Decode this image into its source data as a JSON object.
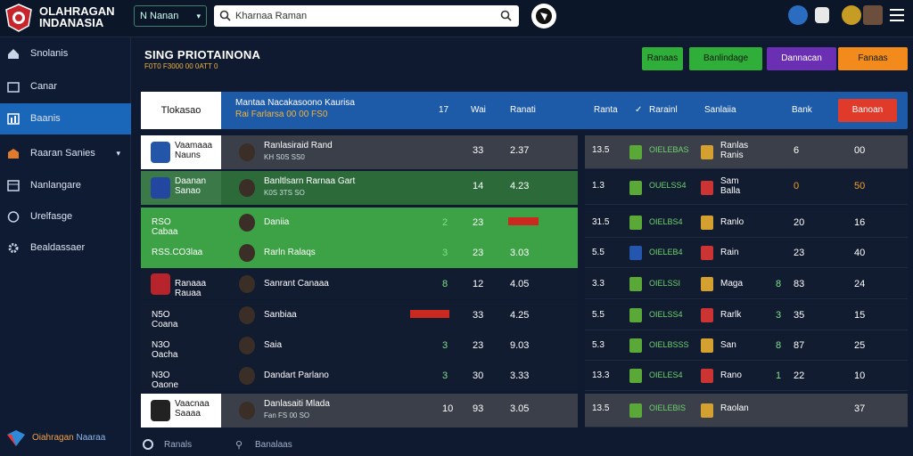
{
  "brand": {
    "line1": "OLAHRAGAN",
    "line2": "INDANASIA"
  },
  "topbar": {
    "select_label": "N Nanan",
    "search_value": "Kharnaa Raman"
  },
  "sidebar": {
    "items": [
      {
        "label": "Snolanis"
      },
      {
        "label": "Canar"
      },
      {
        "label": "Baanis"
      },
      {
        "label": "Raaran Sanies"
      },
      {
        "label": "Nanlangare"
      },
      {
        "label": "Urelfasge"
      },
      {
        "label": "Bealdassaer"
      }
    ],
    "footer": {
      "a": "Oiahragan",
      "b": "Naaraa"
    }
  },
  "main": {
    "title": "SING PRIOTAINONA",
    "subtitle": "F0T0 F3000   00 0ATT 0"
  },
  "buttons": [
    {
      "label": "Ranaas",
      "color": "#2fae3a"
    },
    {
      "label": "Banlindage",
      "color": "#2fae3a"
    },
    {
      "label": "Dannacan",
      "color": "#6a2fb3"
    },
    {
      "label": "Fanaas",
      "color": "#f28a1c"
    }
  ],
  "table_header": {
    "first": "Tlokasao",
    "title": "Mantaa Nacakasoono Kaurisa",
    "sub": "Rai Farlarsa 00 00 FS0",
    "c1": "17",
    "c2": "Wai",
    "c3": "Ranati",
    "r1": "Ranta",
    "r2": "Rarainl",
    "r3": "Sanlaiia",
    "r4": "Bank",
    "cta": "Banoan"
  },
  "left_rows": [
    {
      "team": "Vaamaaa Nauns",
      "player": "Ranlasiraid Rand",
      "player_sub": "KH S0S SS0",
      "c1": "",
      "c2": "33",
      "c3": "2.37",
      "bg": "#3a3f49"
    },
    {
      "team": "Daanan Sanao",
      "player": "Banltlsarn Rarnaa Gart",
      "player_sub": "K0S 3TS SO",
      "c1": "",
      "c2": "14",
      "c3": "4.23",
      "bg": "#2c6a3a"
    },
    {
      "team": "RSO Cabaa",
      "player": "Daniia",
      "player_sub": "",
      "c1": "2",
      "c2": "23",
      "c3": "",
      "bg": "#3da145"
    },
    {
      "team": "RSS.CO3laa",
      "player": "Rarln Ralaqs",
      "player_sub": "",
      "c1": "3",
      "c2": "23",
      "c3": "3.03",
      "bg": "#3da145"
    },
    {
      "team": "Ranaaa Rauaa",
      "player": "Sanrant Canaaa",
      "player_sub": "",
      "c1": "8",
      "c2": "12",
      "c3": "4.05",
      "bg": "#121c30"
    },
    {
      "team": "N5O Coana",
      "player": "Sanbiaa",
      "player_sub": "",
      "c1": "",
      "c2": "33",
      "c3": "4.25",
      "bg": "#121c30"
    },
    {
      "team": "N3O Oacha",
      "player": "Saia",
      "player_sub": "",
      "c1": "3",
      "c2": "23",
      "c3": "9.03",
      "bg": "#121c30"
    },
    {
      "team": "N3O Oaone",
      "player": "Dandart Parlano",
      "player_sub": "",
      "c1": "3",
      "c2": "30",
      "c3": "3.33",
      "bg": "#121c30"
    },
    {
      "team": "Vaacnaa Saaaa",
      "player": "Danlasaiti Mlada",
      "player_sub": "Fan FS 00 SO",
      "c1": "10",
      "c2": "93",
      "c3": "3.05",
      "bg": "#3a3f49"
    }
  ],
  "right_rows": [
    {
      "a": "13.5",
      "b": "OIELEBAS",
      "name": "Ranlas Ranis",
      "c": "",
      "d": "6",
      "e": "00",
      "bg": "#3a3f49"
    },
    {
      "a": "1.3",
      "b": "OUELSS4",
      "name": "Sam Balla",
      "c": "",
      "d": "0",
      "e": "50",
      "bg": "#121c30"
    },
    {
      "a": "31.5",
      "b": "OIELBS4",
      "name": "Ranlo",
      "c": "",
      "d": "20",
      "e": "16",
      "bg": "#121c30"
    },
    {
      "a": "5.5",
      "b": "OIELEB4",
      "name": "Rain",
      "c": "",
      "d": "23",
      "e": "40",
      "bg": "#121c30"
    },
    {
      "a": "3.3",
      "b": "OIELSSI",
      "name": "Maga",
      "c": "8",
      "d": "83",
      "e": "24",
      "bg": "#121c30"
    },
    {
      "a": "5.5",
      "b": "OIELSS4",
      "name": "Rarlk",
      "c": "3",
      "d": "35",
      "e": "15",
      "bg": "#121c30"
    },
    {
      "a": "5.3",
      "b": "OIELBSSS",
      "name": "San",
      "c": "8",
      "d": "87",
      "e": "25",
      "bg": "#121c30"
    },
    {
      "a": "13.3",
      "b": "OIELES4",
      "name": "Rano",
      "c": "1",
      "d": "22",
      "e": "10",
      "bg": "#121c30"
    },
    {
      "a": "13.5",
      "b": "OIELEBIS",
      "name": "Raolan",
      "c": "",
      "d": "",
      "e": "37",
      "bg": "#3a3f49"
    }
  ],
  "footer": {
    "left": "Ranals",
    "right": "Banalaas"
  }
}
